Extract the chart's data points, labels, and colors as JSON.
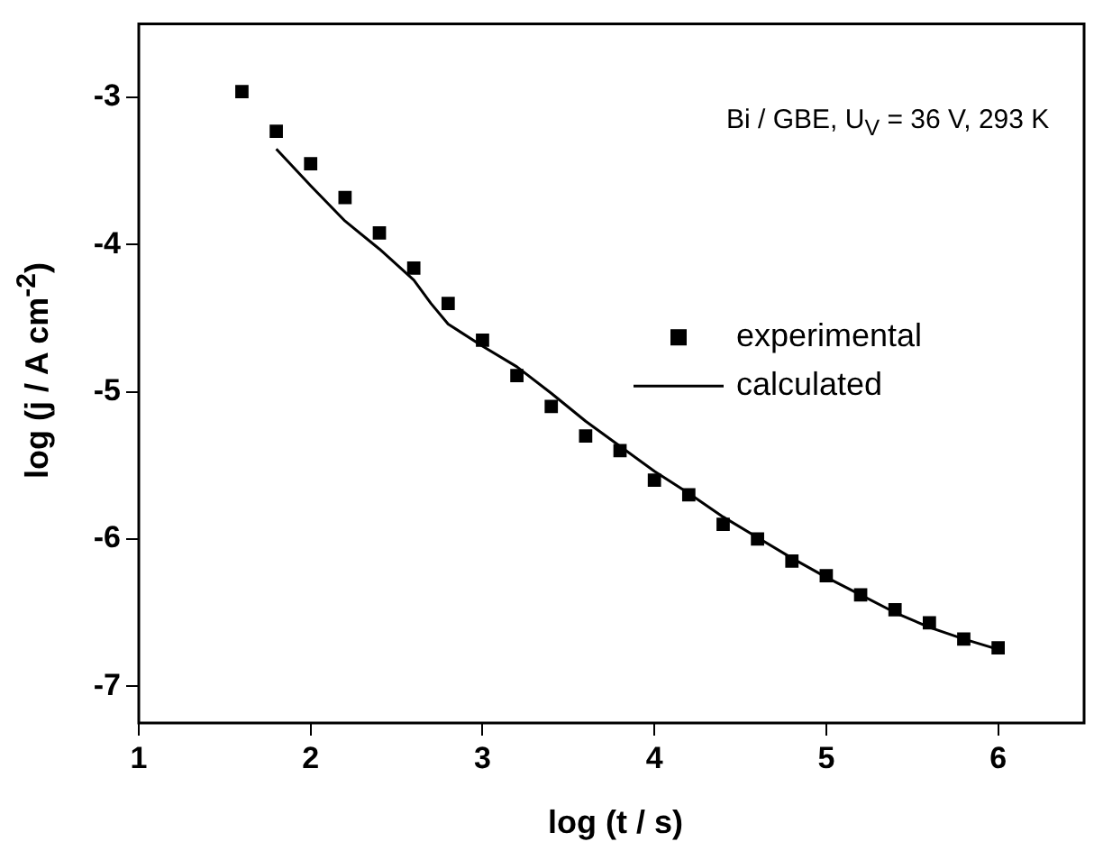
{
  "chart_data": {
    "type": "scatter",
    "xlabel": "log (t / s)",
    "ylabel": "log (j / A cm$^{-2}$)",
    "annotations": [
      "Bi / GBE, U$_{V}$ = 36 V, 293 K"
    ],
    "xlim": [
      1,
      6.5
    ],
    "ylim": [
      -7.25,
      -2.5
    ],
    "xticks": [
      1,
      2,
      3,
      4,
      5,
      6
    ],
    "yticks": [
      -7,
      -6,
      -5,
      -4,
      -3
    ],
    "grid": false,
    "legend": "right",
    "marker": "square",
    "series": [
      {
        "name": "experimental",
        "color": "#000000",
        "x": [
          1.6,
          1.8,
          2.0,
          2.2,
          2.4,
          2.6,
          2.8,
          3.0,
          3.2,
          3.4,
          3.6,
          3.8,
          4.0,
          4.2,
          4.4,
          4.6,
          4.8,
          5.0,
          5.2,
          5.4,
          5.6,
          5.8,
          6.0
        ],
        "values": [
          -2.96,
          -3.23,
          -3.45,
          -3.68,
          -3.92,
          -4.16,
          -4.4,
          -4.65,
          -4.89,
          -5.1,
          -5.3,
          -5.4,
          -5.6,
          -5.7,
          -5.9,
          -6.0,
          -6.15,
          -6.25,
          -6.38,
          -6.48,
          -6.57,
          -6.68,
          -6.74
        ]
      },
      {
        "name": "calculated",
        "type": "line",
        "color": "#000000",
        "line_style": "solid",
        "marker": "none",
        "x": [
          1.8,
          2.0,
          2.2,
          2.4,
          2.6,
          2.7,
          2.8,
          3.0,
          3.2,
          3.4,
          3.6,
          3.8,
          4.0,
          4.2,
          4.4,
          4.6,
          4.8,
          5.0,
          5.2,
          5.4,
          5.6,
          5.8,
          6.0
        ],
        "values": [
          -3.35,
          -3.6,
          -3.84,
          -4.03,
          -4.24,
          -4.4,
          -4.54,
          -4.69,
          -4.83,
          -5.01,
          -5.2,
          -5.37,
          -5.54,
          -5.69,
          -5.85,
          -5.99,
          -6.13,
          -6.26,
          -6.38,
          -6.5,
          -6.6,
          -6.68,
          -6.75
        ]
      }
    ]
  }
}
